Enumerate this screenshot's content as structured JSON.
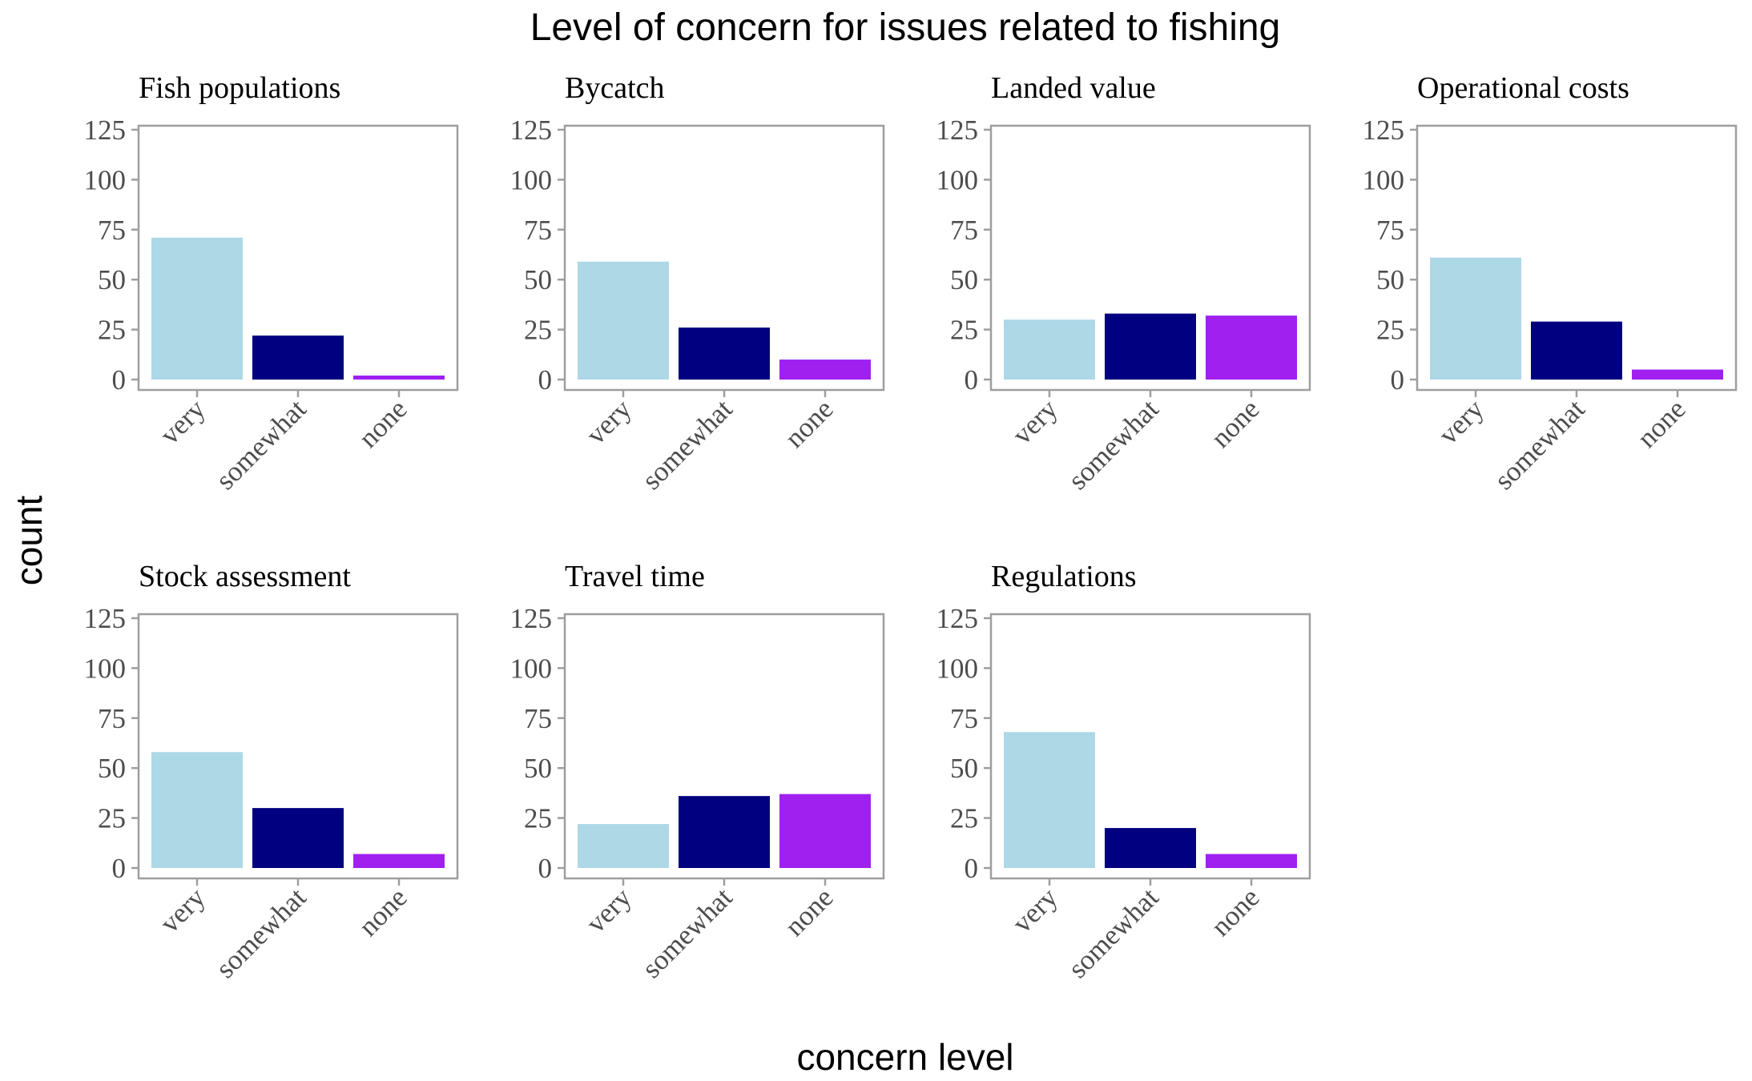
{
  "chart_data": {
    "type": "bar",
    "title": "Level of concern for issues related to fishing",
    "xlabel": "concern level",
    "ylabel": "count",
    "ylim": [
      0,
      125
    ],
    "yticks": [
      0,
      25,
      50,
      75,
      100,
      125
    ],
    "grid": false,
    "categories": [
      "very",
      "somewhat",
      "none"
    ],
    "colors": {
      "very": "#add8e6",
      "somewhat": "#000080",
      "none": "#a020f0"
    },
    "panels": [
      {
        "name": "Fish populations",
        "values": [
          71,
          22,
          2
        ]
      },
      {
        "name": "Bycatch",
        "values": [
          59,
          26,
          10
        ]
      },
      {
        "name": "Landed value",
        "values": [
          30,
          33,
          32
        ]
      },
      {
        "name": "Operational costs",
        "values": [
          61,
          29,
          5
        ]
      },
      {
        "name": "Stock assessment",
        "values": [
          58,
          30,
          7
        ]
      },
      {
        "name": "Travel time",
        "values": [
          22,
          36,
          37
        ]
      },
      {
        "name": "Regulations",
        "values": [
          68,
          20,
          7
        ]
      }
    ]
  }
}
